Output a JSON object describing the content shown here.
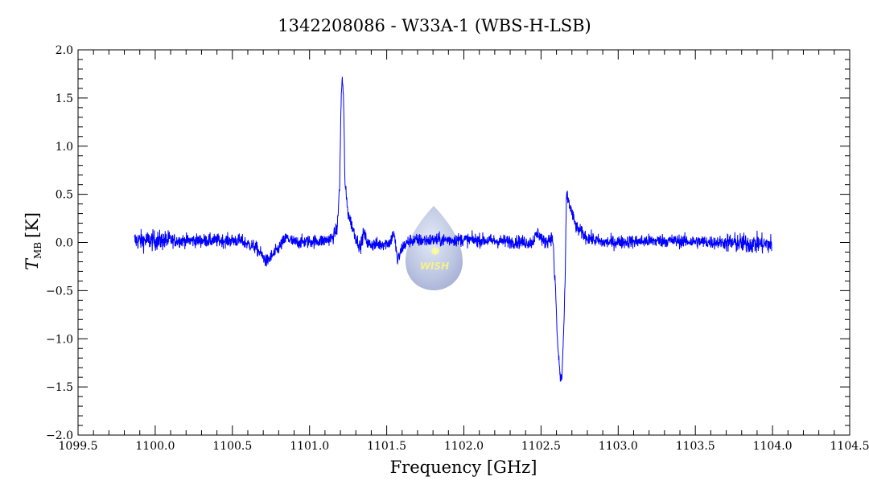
{
  "chart_data": {
    "type": "line",
    "title": "1342208086 - W33A-1 (WBS-H-LSB)",
    "xlabel": "Frequency [GHz]",
    "ylabel_main": "T",
    "ylabel_sub": "MB",
    "ylabel_unit": "[K]",
    "xlim": [
      1099.5,
      1104.5
    ],
    "ylim": [
      -2.0,
      2.0
    ],
    "x_major_step": 0.5,
    "x_minor_step": 0.1,
    "y_major_step": 0.5,
    "y_minor_step": 0.1,
    "x_ticks": [
      "1099.5",
      "1100.0",
      "1100.5",
      "1101.0",
      "1101.5",
      "1102.0",
      "1102.5",
      "1103.0",
      "1103.5",
      "1104.0",
      "1104.5"
    ],
    "y_ticks": [
      "2.0",
      "1.5",
      "1.0",
      "0.5",
      "0.0",
      "−0.5",
      "−1.0",
      "−1.5",
      "−2.0"
    ],
    "grid": false,
    "line_color": "#0000ff",
    "watermark_text": "WISH",
    "series": [
      {
        "name": "spectrum",
        "x_range": [
          1099.865,
          1103.995
        ],
        "noise_rms": 0.035,
        "profile_x": [
          1099.865,
          1100.0,
          1100.3,
          1100.55,
          1100.65,
          1100.7,
          1100.72,
          1100.78,
          1100.85,
          1100.9,
          1101.1,
          1101.15,
          1101.18,
          1101.195,
          1101.205,
          1101.212,
          1101.22,
          1101.23,
          1101.25,
          1101.3,
          1101.33,
          1101.35,
          1101.38,
          1101.45,
          1101.52,
          1101.545,
          1101.56,
          1101.57,
          1101.6,
          1101.65,
          1102.0,
          1102.44,
          1102.48,
          1102.52,
          1102.57,
          1102.58,
          1102.585,
          1102.595,
          1102.605,
          1102.615,
          1102.625,
          1102.635,
          1102.645,
          1102.655,
          1102.66,
          1102.665,
          1102.675,
          1102.7,
          1102.73,
          1102.8,
          1102.9,
          1103.3,
          1103.995
        ],
        "profile_y": [
          0.02,
          0.02,
          0.02,
          0.02,
          -0.05,
          -0.15,
          -0.2,
          -0.1,
          0.05,
          0.0,
          0.02,
          0.05,
          0.15,
          0.6,
          1.5,
          1.72,
          1.5,
          0.6,
          0.3,
          0.05,
          -0.05,
          0.1,
          -0.02,
          -0.02,
          0.0,
          0.1,
          -0.05,
          -0.2,
          -0.05,
          0.02,
          0.03,
          0.0,
          0.1,
          0.0,
          0.05,
          0.0,
          -0.3,
          -0.5,
          -1.0,
          -1.2,
          -1.42,
          -1.4,
          -1.0,
          -0.5,
          0.0,
          0.5,
          0.45,
          0.3,
          0.15,
          0.05,
          0.0,
          0.02,
          -0.02
        ]
      }
    ]
  }
}
